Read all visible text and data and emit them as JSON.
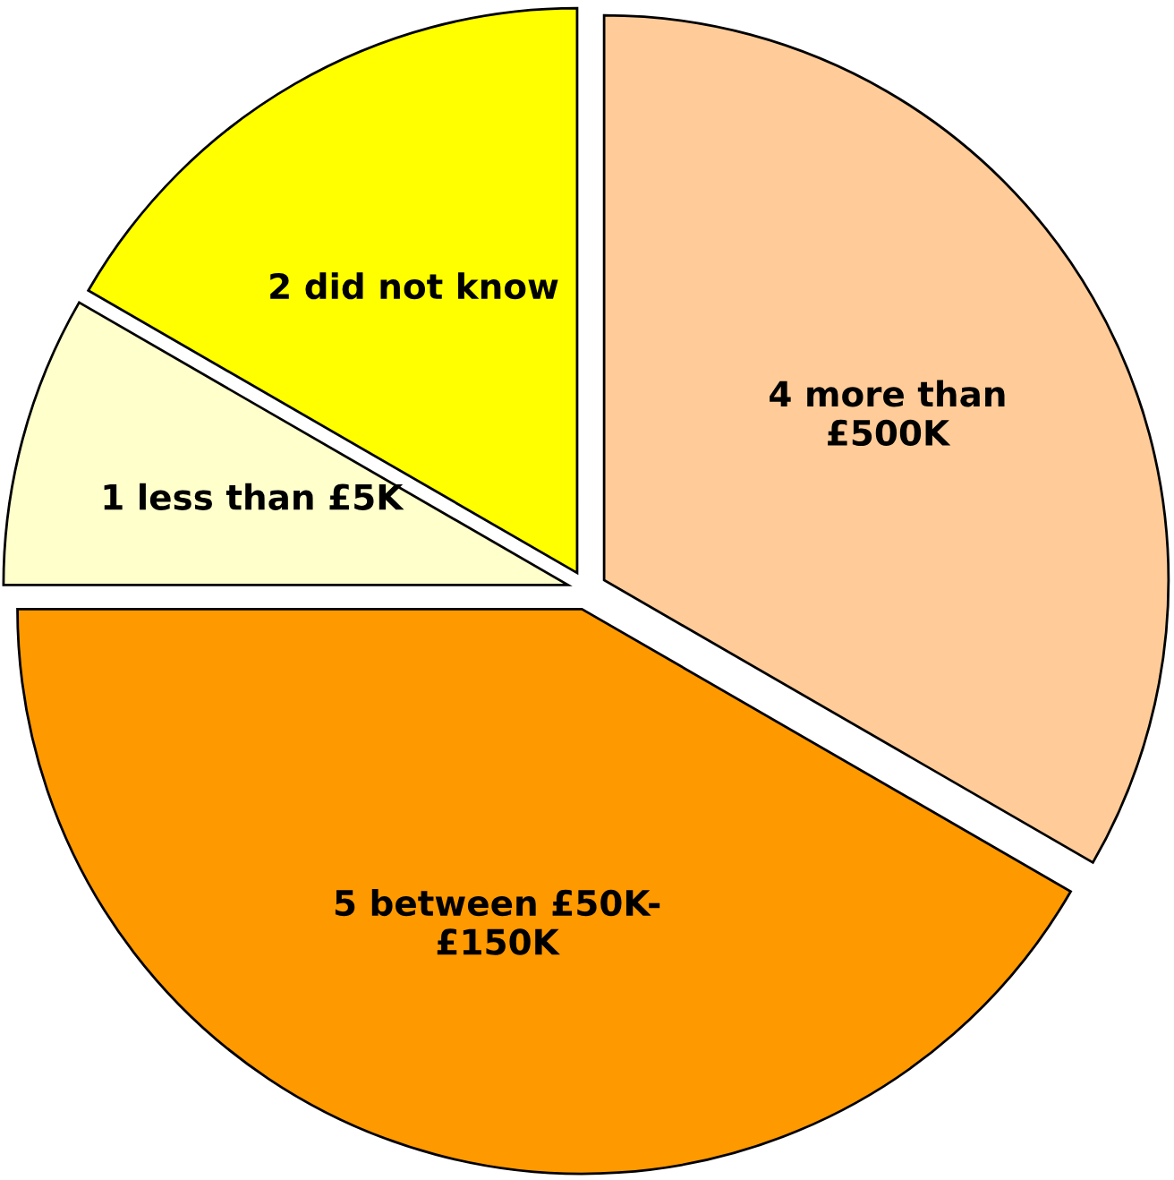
{
  "chart_data": {
    "type": "pie",
    "categories": [
      "4 more than\n£500K",
      "5 between £50K-\n£150K",
      "1 less than £5K",
      "2 did not know"
    ],
    "values": [
      4,
      5,
      1,
      2
    ],
    "colors": [
      "#ffcc99",
      "#ff9900",
      "#ffffcc",
      "#ffff00"
    ],
    "legend": false
  }
}
